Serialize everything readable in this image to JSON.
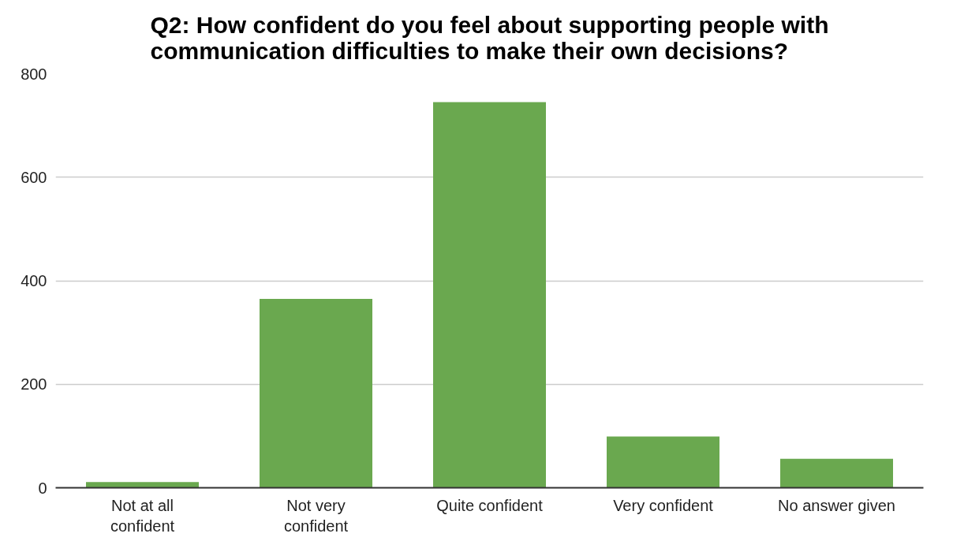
{
  "chart_data": {
    "type": "bar",
    "title": "Q2: How confident do you feel about supporting people with communication difficulties to make their own decisions?",
    "categories": [
      "Not at all confident",
      "Not very confident",
      "Quite confident",
      "Very confident",
      "No answer given"
    ],
    "values": [
      11,
      365,
      745,
      99,
      56
    ],
    "color": "#6aa84f",
    "ylim": [
      0,
      800
    ],
    "yticks": [
      0,
      200,
      400,
      600,
      800
    ],
    "grid": "y"
  }
}
